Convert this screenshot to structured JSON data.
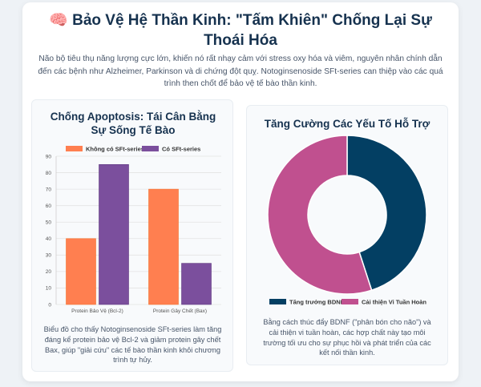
{
  "header": {
    "icon": "brain-icon",
    "title": "Bảo Vệ Hệ Thần Kinh: \"Tấm Khiên\" Chống Lại Sự Thoái Hóa",
    "intro": "Não bộ tiêu thụ năng lượng cực lớn, khiến nó rất nhạy cảm với stress oxy hóa và viêm, nguyên nhân chính dẫn đến các bệnh như Alzheimer, Parkinson và di chứng đột quỵ. Notoginsenoside SFt-series can thiệp vào các quá trình then chốt để bảo vệ tế bào thần kinh."
  },
  "left_panel": {
    "title": "Chống Apoptosis: Tái Cân Bằng Sự Sống Tế Bào",
    "description": "Biểu đồ cho thấy Notoginsenoside SFt-series làm tăng đáng kể protein bảo vệ Bcl-2 và giảm protein gây chết Bax, giúp \"giải cứu\" các tế bào thần kinh khỏi chương trình tự hủy."
  },
  "right_panel": {
    "title": "Tăng Cường Các Yếu Tố Hỗ Trợ",
    "description": "Bằng cách thúc đẩy BDNF (\"phân bón cho não\") và cải thiện vi tuần hoàn, các hợp chất này tạo môi trường tối ưu cho sự phục hồi và phát triển của các kết nối thần kinh."
  },
  "colors": {
    "orange": "#ff7f50",
    "purple": "#7b4f9d",
    "navy": "#033f63",
    "pink": "#c0508f"
  },
  "chart_data": [
    {
      "type": "bar",
      "categories": [
        "Protein Bảo Vệ (Bcl-2)",
        "Protein Gây Chết (Bax)"
      ],
      "series": [
        {
          "name": "Không có SFt-series",
          "values": [
            40,
            70
          ],
          "color": "#ff7f50"
        },
        {
          "name": "Có SFt-series",
          "values": [
            85,
            25
          ],
          "color": "#7b4f9d"
        }
      ],
      "ylim": [
        0,
        90
      ],
      "yticks": [
        0,
        10,
        20,
        30,
        40,
        50,
        60,
        70,
        80,
        90
      ],
      "legend": "top",
      "grid": true
    },
    {
      "type": "pie",
      "donut": true,
      "labels": [
        "Tăng trưởng BDNF",
        "Cải thiện Vi Tuần Hoàn"
      ],
      "values": [
        45,
        55
      ],
      "colors": [
        "#033f63",
        "#c0508f"
      ],
      "legend": "bottom"
    }
  ]
}
